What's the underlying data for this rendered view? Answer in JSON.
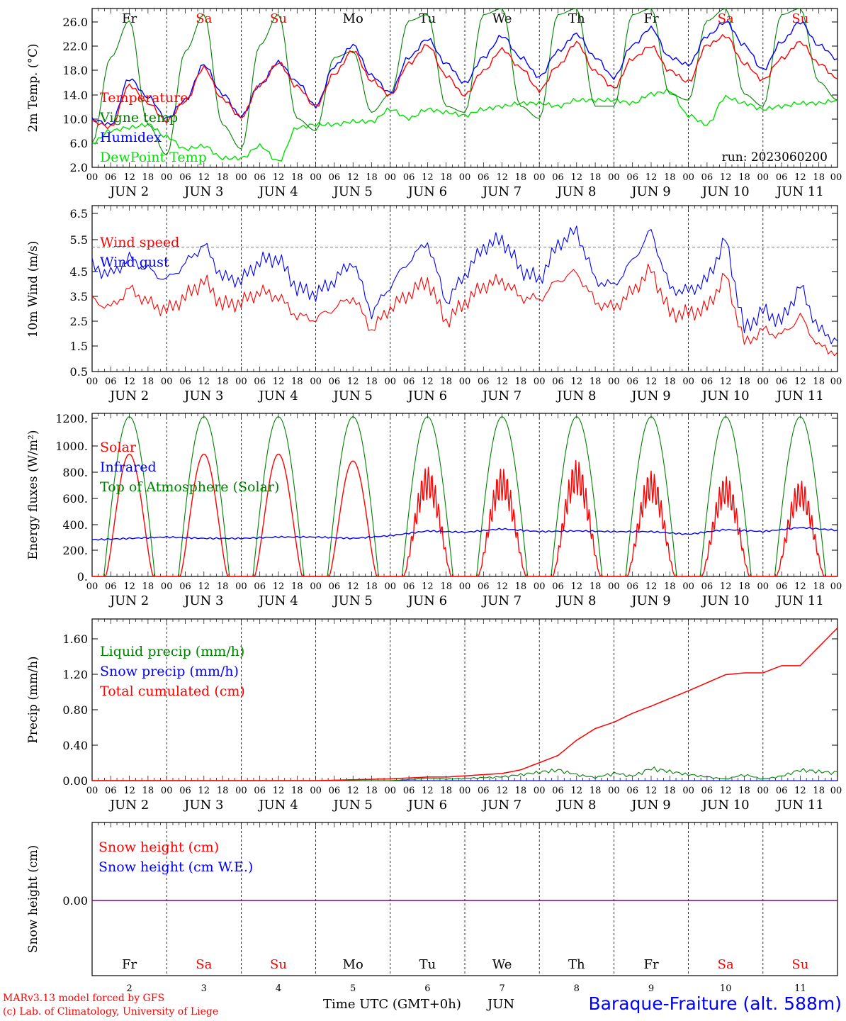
{
  "days": [
    {
      "day": "2",
      "month": "JUN",
      "weekday": "Fr",
      "weekend": false
    },
    {
      "day": "3",
      "month": "JUN",
      "weekday": "Sa",
      "weekend": true
    },
    {
      "day": "4",
      "month": "JUN",
      "weekday": "Su",
      "weekend": true
    },
    {
      "day": "5",
      "month": "JUN",
      "weekday": "Mo",
      "weekend": false
    },
    {
      "day": "6",
      "month": "JUN",
      "weekday": "Tu",
      "weekend": false
    },
    {
      "day": "7",
      "month": "JUN",
      "weekday": "We",
      "weekend": false
    },
    {
      "day": "8",
      "month": "JUN",
      "weekday": "Th",
      "weekend": false
    },
    {
      "day": "9",
      "month": "JUN",
      "weekday": "Fr",
      "weekend": false
    },
    {
      "day": "10",
      "month": "JUN",
      "weekday": "Sa",
      "weekend": true
    },
    {
      "day": "11",
      "month": "JUN",
      "weekday": "Su",
      "weekend": true
    }
  ],
  "hour_ticks": [
    "00",
    "06",
    "12",
    "18"
  ],
  "final_hour_tick": "00",
  "colors": {
    "red": "#ff0000",
    "green": "#008000",
    "blue": "#0000ff",
    "light_green": "#00e000",
    "purple": "#800080",
    "weekend": "#ff0000",
    "weekday": "#000000"
  },
  "footer": {
    "model_line": "MARv3.13 model forced by GFS",
    "lab_line": "(c) Lab. of Climatology, University of Liege",
    "time_label": "Time UTC (GMT+0h)",
    "month_label": "JUN",
    "station": "Baraque-Fraiture (alt. 588m)"
  },
  "chart_data": [
    {
      "id": "temp",
      "type": "line",
      "ylabel": "2m Temp. (°C)",
      "ylim": [
        2,
        28
      ],
      "ytick_labels": [
        "2.0",
        "6.0",
        "10.0",
        "14.0",
        "18.0",
        "22.0",
        "26.0"
      ],
      "run_label": "run: 2023060200",
      "x_hours": [
        0,
        6,
        12,
        18,
        24,
        30,
        36,
        42,
        48,
        54,
        60,
        66,
        72,
        78,
        84,
        90,
        96,
        102,
        108,
        114,
        120,
        126,
        132,
        138,
        144,
        150,
        156,
        162,
        168,
        174,
        180,
        186,
        192,
        198,
        204,
        210,
        216,
        222,
        228,
        234,
        240
      ],
      "series": [
        {
          "name": "Temperature",
          "color": "#ff0000",
          "values": [
            9.5,
            8.6,
            15.4,
            12.5,
            9.6,
            12.8,
            18.3,
            13.2,
            10.2,
            15.5,
            19.1,
            15.2,
            12.0,
            17.3,
            21.1,
            16.2,
            13.8,
            19.0,
            22.0,
            17.0,
            13.8,
            17.8,
            21.3,
            18.3,
            14.6,
            18.6,
            22.4,
            17.7,
            15.0,
            19.8,
            21.8,
            17.8,
            16.0,
            22.0,
            23.5,
            19.0,
            16.3,
            19.8,
            22.5,
            19.0,
            16.5
          ]
        },
        {
          "name": "Vigne temp",
          "color": "#008000",
          "values": [
            6.0,
            20.0,
            26.0,
            9.0,
            4.0,
            21.0,
            27.0,
            9.0,
            5.0,
            22.0,
            27.0,
            10.0,
            8.0,
            20.0,
            21.0,
            11.0,
            14.0,
            26.0,
            27.0,
            12.0,
            11.0,
            27.0,
            28.0,
            12.0,
            10.0,
            27.0,
            28.0,
            12.0,
            12.0,
            27.0,
            28.0,
            14.0,
            13.0,
            26.0,
            28.0,
            14.0,
            12.0,
            27.0,
            28.0,
            16.0,
            13.0
          ]
        },
        {
          "name": "Humidex",
          "color": "#0000ff",
          "values": [
            9.8,
            9.0,
            16.5,
            13.5,
            10.0,
            13.0,
            18.8,
            14.0,
            10.3,
            15.5,
            19.2,
            16.0,
            12.0,
            18.5,
            22.0,
            17.0,
            14.2,
            20.0,
            23.0,
            19.0,
            15.8,
            20.0,
            23.5,
            20.0,
            16.8,
            21.0,
            23.8,
            20.0,
            16.7,
            22.0,
            24.8,
            20.0,
            18.8,
            23.5,
            25.8,
            22.0,
            18.0,
            22.5,
            25.8,
            22.0,
            19.8
          ]
        },
        {
          "name": "DewPoint Temp",
          "color": "#00e000",
          "values": [
            6.0,
            8.0,
            8.5,
            9.0,
            7.0,
            5.0,
            5.5,
            3.5,
            3.5,
            5.5,
            3.0,
            8.5,
            9.0,
            9.0,
            9.5,
            9.5,
            11.5,
            10.0,
            11.5,
            11.0,
            10.5,
            11.5,
            12.0,
            12.5,
            12.5,
            12.0,
            13.0,
            13.0,
            13.0,
            12.5,
            14.0,
            14.5,
            10.5,
            9.0,
            13.5,
            12.5,
            11.5,
            12.0,
            12.5,
            12.5,
            13.0
          ]
        }
      ]
    },
    {
      "id": "wind",
      "type": "line",
      "ylabel": "10m Wind (m/s)",
      "ylim": [
        0.5,
        6.5
      ],
      "ytick_labels": [
        "0.5",
        "1.5",
        "2.5",
        "3.5",
        "4.5",
        "5.5",
        "6.5"
      ],
      "reference_line": 5.0,
      "x_hours": [
        0,
        6,
        12,
        18,
        24,
        30,
        36,
        42,
        48,
        54,
        60,
        66,
        72,
        78,
        84,
        90,
        96,
        102,
        108,
        114,
        120,
        126,
        132,
        138,
        144,
        150,
        156,
        162,
        168,
        174,
        180,
        186,
        192,
        198,
        204,
        210,
        216,
        222,
        228,
        234,
        240
      ],
      "series": [
        {
          "name": "Wind speed",
          "color": "#ff0000",
          "values": [
            3.1,
            2.8,
            3.5,
            3.0,
            2.7,
            3.2,
            3.8,
            2.9,
            3.0,
            3.4,
            3.2,
            2.5,
            2.4,
            2.8,
            3.2,
            2.0,
            2.8,
            3.3,
            3.8,
            2.3,
            3.0,
            3.6,
            3.8,
            3.2,
            3.1,
            3.8,
            4.1,
            3.0,
            2.8,
            3.4,
            4.2,
            2.6,
            2.6,
            2.8,
            4.0,
            1.5,
            2.0,
            1.8,
            2.5,
            1.4,
            1.2
          ]
        },
        {
          "name": "Wind gust",
          "color": "#0000ff",
          "values": [
            4.3,
            4.0,
            4.6,
            4.2,
            3.8,
            4.4,
            5.1,
            3.9,
            3.8,
            4.5,
            4.6,
            3.5,
            3.3,
            3.8,
            4.5,
            2.6,
            3.6,
            4.5,
            5.2,
            3.0,
            4.0,
            5.0,
            5.3,
            4.2,
            3.8,
            5.1,
            5.6,
            3.8,
            3.6,
            4.5,
            5.6,
            3.5,
            3.4,
            3.8,
            5.3,
            2.0,
            2.7,
            2.3,
            3.6,
            2.0,
            1.6
          ]
        }
      ]
    },
    {
      "id": "flux",
      "type": "line",
      "ylabel": "Energy fluxes (W/m²)",
      "ylim": [
        0,
        1200
      ],
      "ytick_labels": [
        "0.",
        "200.",
        "400.",
        "600.",
        "800.",
        "1000.",
        "1200."
      ],
      "solar_peaks": [
        900,
        900,
        900,
        850,
        810,
        800,
        860,
        780,
        740,
        710
      ],
      "toa_peak": 1175,
      "series": [
        {
          "name": "Solar",
          "color": "#ff0000"
        },
        {
          "name": "Infrared",
          "color": "#0000ff",
          "x_hours": [
            0,
            12,
            24,
            36,
            48,
            60,
            72,
            84,
            96,
            108,
            120,
            132,
            144,
            156,
            168,
            180,
            192,
            204,
            216,
            228,
            240
          ],
          "values": [
            270,
            280,
            290,
            280,
            280,
            290,
            290,
            280,
            300,
            335,
            325,
            350,
            330,
            335,
            330,
            330,
            310,
            345,
            330,
            360,
            340
          ]
        },
        {
          "name": "Top of Atmosphere (Solar)",
          "color": "#008000"
        }
      ]
    },
    {
      "id": "precip",
      "type": "line",
      "ylabel": "Precip (mm/h)",
      "ylim": [
        0,
        1.8
      ],
      "ytick_labels": [
        "0.00",
        "0.40",
        "0.80",
        "1.20",
        "1.60"
      ],
      "x_hours": [
        0,
        72,
        96,
        108,
        114,
        132,
        138,
        150,
        156,
        162,
        168,
        174,
        180,
        192,
        204,
        210,
        216,
        222,
        228,
        240
      ],
      "series": [
        {
          "name": "Liquid precip (mm/h)",
          "color": "#008000",
          "values": [
            0,
            0,
            0,
            0.03,
            0.02,
            0.05,
            0.08,
            0.14,
            0.08,
            0.04,
            0.1,
            0.06,
            0.16,
            0.08,
            0.02,
            0.08,
            0.02,
            0.06,
            0.14,
            0.1
          ]
        },
        {
          "name": "Snow precip (mm/h)",
          "color": "#0000ff",
          "values": [
            0,
            0,
            0,
            0,
            0,
            0,
            0,
            0,
            0,
            0,
            0,
            0,
            0,
            0,
            0,
            0,
            0,
            0,
            0,
            0
          ]
        },
        {
          "name": "Total cumulated (cm)",
          "color": "#ff0000",
          "values": [
            0,
            0,
            0.02,
            0.04,
            0.04,
            0.08,
            0.12,
            0.28,
            0.45,
            0.58,
            0.65,
            0.75,
            0.83,
            1.0,
            1.18,
            1.2,
            1.2,
            1.28,
            1.28,
            1.7
          ]
        }
      ]
    },
    {
      "id": "snow",
      "type": "line",
      "ylabel": "Snow height (cm)",
      "ytick_labels": [
        "0.00"
      ],
      "series": [
        {
          "name": "Snow height (cm)",
          "color": "#ff0000",
          "values": [
            0,
            0
          ]
        },
        {
          "name": "Snow height (cm W.E.)",
          "color": "#0000ff",
          "values": [
            0,
            0
          ]
        }
      ]
    }
  ]
}
